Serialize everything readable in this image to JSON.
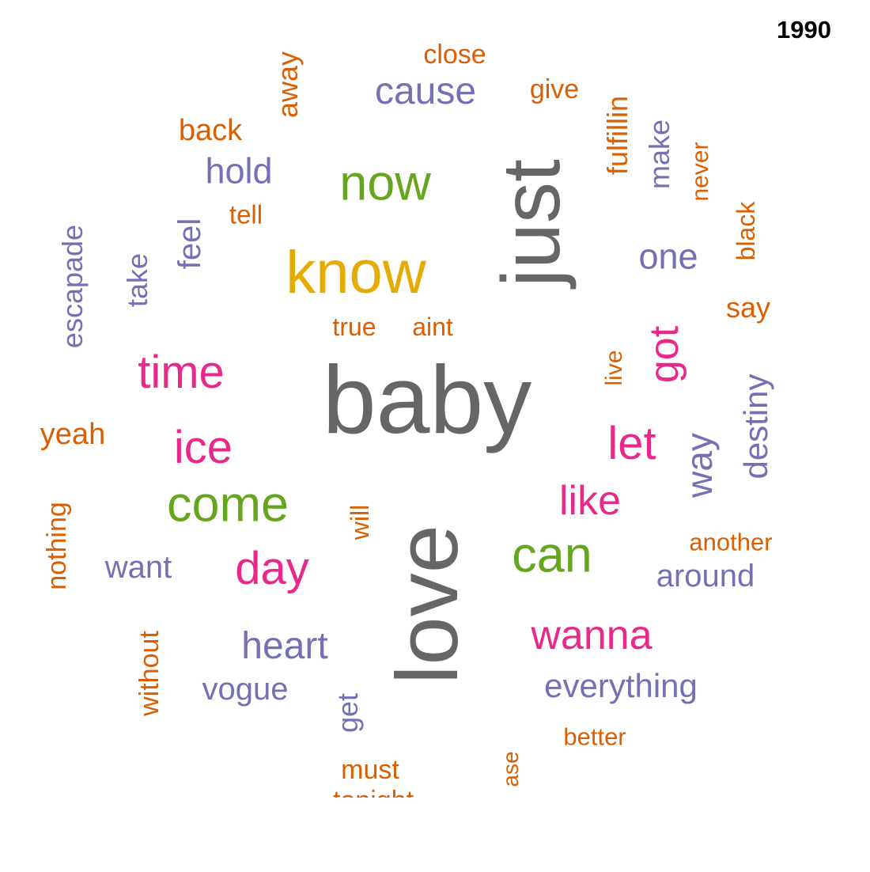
{
  "year": "1990",
  "colors": {
    "orange": "#d95f02",
    "purple": "#7570b3",
    "pink": "#e7298a",
    "green": "#66a61e",
    "gold": "#e6ab02",
    "gray": "#666666"
  },
  "words": [
    {
      "text": "baby",
      "color": "gray"
    },
    {
      "text": "love",
      "color": "gray"
    },
    {
      "text": "just",
      "color": "gray"
    },
    {
      "text": "know",
      "color": "gold"
    },
    {
      "text": "now",
      "color": "green"
    },
    {
      "text": "come",
      "color": "green"
    },
    {
      "text": "can",
      "color": "green"
    },
    {
      "text": "time",
      "color": "pink"
    },
    {
      "text": "ice",
      "color": "pink"
    },
    {
      "text": "day",
      "color": "pink"
    },
    {
      "text": "let",
      "color": "pink"
    },
    {
      "text": "like",
      "color": "pink"
    },
    {
      "text": "wanna",
      "color": "pink"
    },
    {
      "text": "got",
      "color": "pink"
    },
    {
      "text": "cause",
      "color": "purple"
    },
    {
      "text": "hold",
      "color": "purple"
    },
    {
      "text": "one",
      "color": "purple"
    },
    {
      "text": "heart",
      "color": "purple"
    },
    {
      "text": "vogue",
      "color": "purple"
    },
    {
      "text": "want",
      "color": "purple"
    },
    {
      "text": "around",
      "color": "purple"
    },
    {
      "text": "everything",
      "color": "purple"
    },
    {
      "text": "way",
      "color": "purple"
    },
    {
      "text": "destiny",
      "color": "purple"
    },
    {
      "text": "escapade",
      "color": "purple"
    },
    {
      "text": "take",
      "color": "purple"
    },
    {
      "text": "feel",
      "color": "purple"
    },
    {
      "text": "make",
      "color": "purple"
    },
    {
      "text": "get",
      "color": "purple"
    },
    {
      "text": "close",
      "color": "orange"
    },
    {
      "text": "give",
      "color": "orange"
    },
    {
      "text": "back",
      "color": "orange"
    },
    {
      "text": "tell",
      "color": "orange"
    },
    {
      "text": "true",
      "color": "orange"
    },
    {
      "text": "aint",
      "color": "orange"
    },
    {
      "text": "say",
      "color": "orange"
    },
    {
      "text": "yeah",
      "color": "orange"
    },
    {
      "text": "another",
      "color": "orange"
    },
    {
      "text": "better",
      "color": "orange"
    },
    {
      "text": "must",
      "color": "orange"
    },
    {
      "text": "away",
      "color": "orange"
    },
    {
      "text": "fulfillin",
      "color": "orange"
    },
    {
      "text": "never",
      "color": "orange"
    },
    {
      "text": "black",
      "color": "orange"
    },
    {
      "text": "live",
      "color": "orange"
    },
    {
      "text": "will",
      "color": "orange"
    },
    {
      "text": "nothing",
      "color": "orange"
    },
    {
      "text": "without",
      "color": "orange"
    },
    {
      "text": "ase",
      "color": "orange"
    },
    {
      "text": "tonight",
      "color": "orange"
    }
  ]
}
